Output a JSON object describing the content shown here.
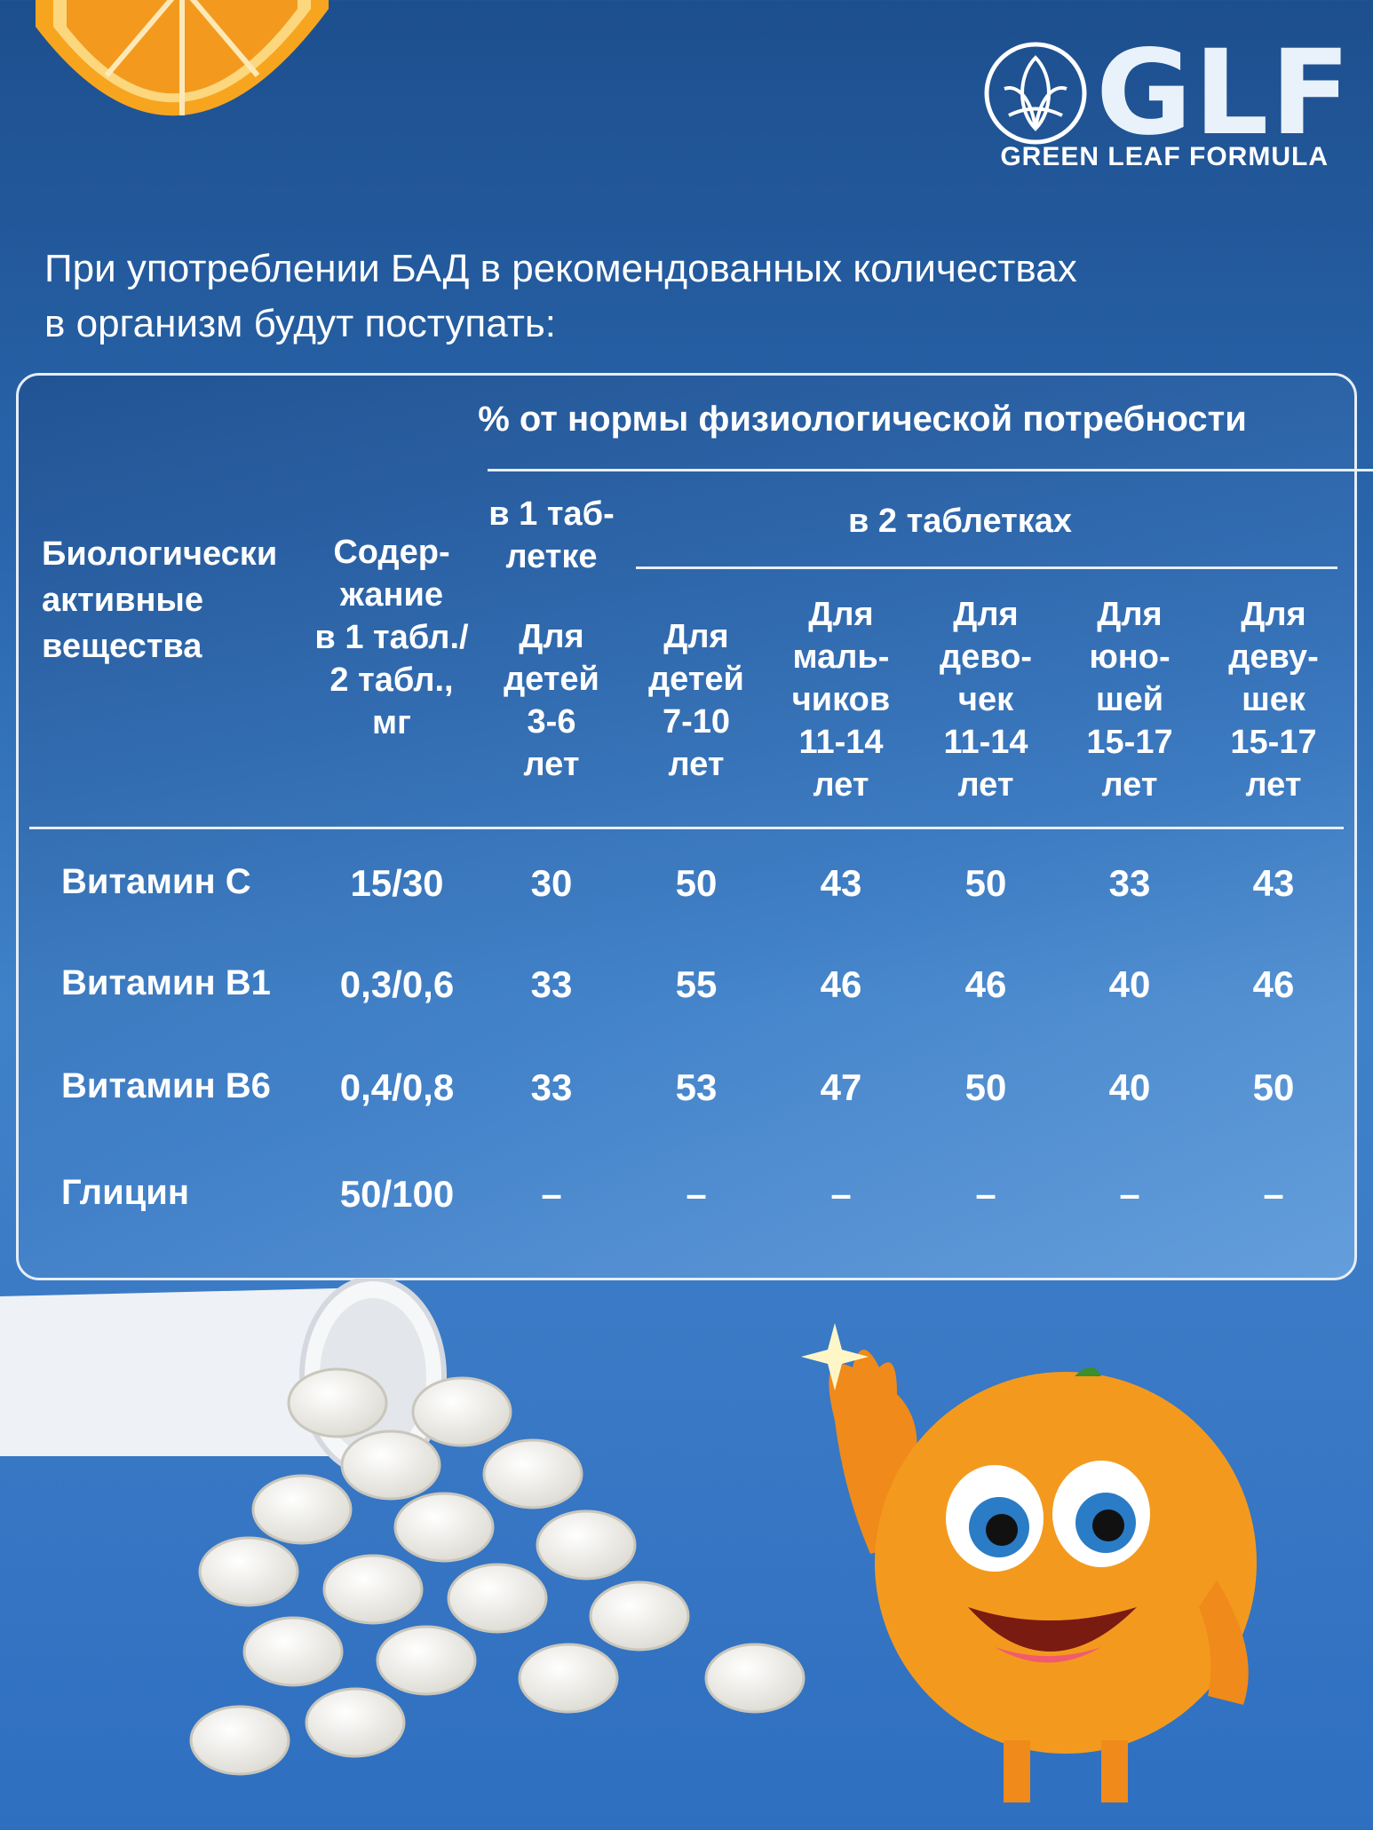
{
  "brand": {
    "letters": "GLF",
    "tagline": "GREEN LEAF FORMULA"
  },
  "intro": {
    "line1": "При употреблении БАД в рекомендованных количествах",
    "line2": "в организм будут поступать:"
  },
  "table": {
    "header_norm": "% от нормы физиологической потребности",
    "col_substance": [
      "Биологически",
      "активные",
      "вещества"
    ],
    "col_content": [
      "Содер-",
      "жание",
      "в 1 табл./",
      "2 табл.,",
      "мг"
    ],
    "group_one_tablet": [
      "в 1 таб-",
      "летке"
    ],
    "group_two_tablets": "в 2 таблетках",
    "age_groups": [
      [
        "Для",
        "детей",
        "3-6",
        "лет"
      ],
      [
        "Для",
        "детей",
        "7-10",
        "лет"
      ],
      [
        "Для",
        "маль-",
        "чиков",
        "11-14",
        "лет"
      ],
      [
        "Для",
        "дево-",
        "чек",
        "11-14",
        "лет"
      ],
      [
        "Для",
        "юно-",
        "шей",
        "15-17",
        "лет"
      ],
      [
        "Для",
        "деву-",
        "шек",
        "15-17",
        "лет"
      ]
    ],
    "rows": [
      {
        "name": "Витамин С",
        "content": "15/30",
        "values": [
          "30",
          "50",
          "43",
          "50",
          "33",
          "43"
        ]
      },
      {
        "name": "Витамин В1",
        "content": "0,3/0,6",
        "values": [
          "33",
          "55",
          "46",
          "46",
          "40",
          "46"
        ]
      },
      {
        "name": "Витамин В6",
        "content": "0,4/0,8",
        "values": [
          "33",
          "53",
          "47",
          "50",
          "40",
          "50"
        ]
      },
      {
        "name": "Глицин",
        "content": "50/100",
        "values": [
          "–",
          "–",
          "–",
          "–",
          "–",
          "–"
        ]
      }
    ]
  },
  "colors": {
    "bg_top": "#1d4f8e",
    "bg_bottom": "#3f82c9",
    "orange": "#f39a1e",
    "pill": "#f3f1ea"
  }
}
